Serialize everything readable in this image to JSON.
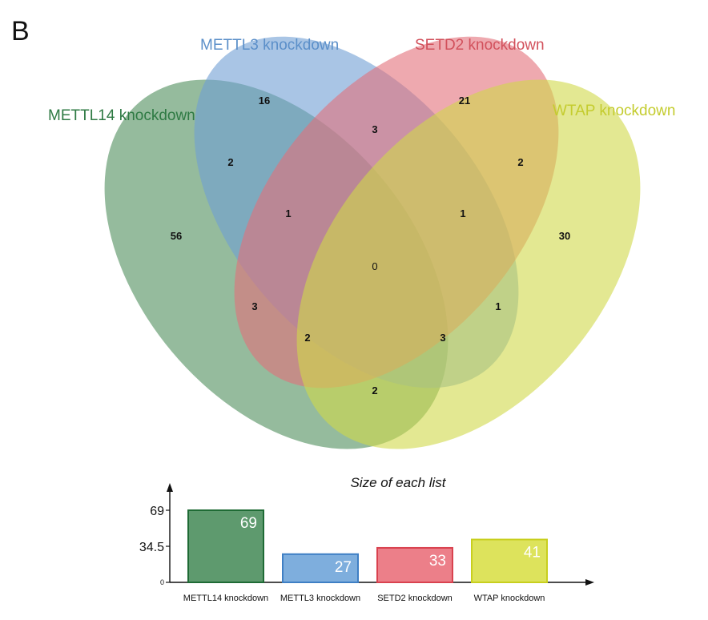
{
  "panel_label": "B",
  "chart_data": [
    {
      "type": "venn",
      "sets": [
        {
          "name": "METTL14 knockdown",
          "color": "#4e8d5c"
        },
        {
          "name": "METTL3 knockdown",
          "color": "#6f9fd4"
        },
        {
          "name": "SETD2 knockdown",
          "color": "#e3707a"
        },
        {
          "name": "WTAP knockdown",
          "color": "#d0d84a"
        }
      ],
      "label_colors": [
        "#2e7a43",
        "#5b8fc9",
        "#d2515c",
        "#c4cc2e"
      ],
      "regions": [
        {
          "sets": [
            "METTL14 knockdown"
          ],
          "count": "56"
        },
        {
          "sets": [
            "METTL3 knockdown"
          ],
          "count": "16"
        },
        {
          "sets": [
            "SETD2 knockdown"
          ],
          "count": "21"
        },
        {
          "sets": [
            "WTAP knockdown"
          ],
          "count": "30"
        },
        {
          "sets": [
            "METTL14 knockdown",
            "METTL3 knockdown"
          ],
          "count": "2"
        },
        {
          "sets": [
            "METTL3 knockdown",
            "SETD2 knockdown"
          ],
          "count": "3"
        },
        {
          "sets": [
            "SETD2 knockdown",
            "WTAP knockdown"
          ],
          "count": "2"
        },
        {
          "sets": [
            "METTL14 knockdown",
            "METTL3 knockdown",
            "SETD2 knockdown"
          ],
          "count": "1"
        },
        {
          "sets": [
            "METTL3 knockdown",
            "SETD2 knockdown",
            "WTAP knockdown"
          ],
          "count": "1"
        },
        {
          "sets": [
            "METTL14 knockdown",
            "METTL3 knockdown",
            "SETD2 knockdown",
            "WTAP knockdown"
          ],
          "count": "0"
        },
        {
          "sets": [
            "METTL14 knockdown",
            "SETD2 knockdown"
          ],
          "count": "3"
        },
        {
          "sets": [
            "METTL3 knockdown",
            "WTAP knockdown"
          ],
          "count": "1"
        },
        {
          "sets": [
            "METTL14 knockdown",
            "SETD2 knockdown",
            "WTAP knockdown"
          ],
          "count": "2"
        },
        {
          "sets": [
            "METTL14 knockdown",
            "METTL3 knockdown",
            "WTAP knockdown"
          ],
          "count": "3"
        },
        {
          "sets": [
            "METTL14 knockdown",
            "WTAP knockdown"
          ],
          "count": "2"
        }
      ]
    },
    {
      "type": "bar",
      "title": "Size of each list",
      "categories": [
        "METTL14 knockdown",
        "METTL3 knockdown",
        "SETD2 knockdown",
        "WTAP knockdown"
      ],
      "values": [
        69,
        27,
        33,
        41
      ],
      "value_labels": [
        "69",
        "27",
        "33",
        "41"
      ],
      "yticks": [
        "69",
        "34.5",
        "0"
      ],
      "ylim": [
        0,
        69
      ],
      "fill_colors": [
        "#5e9a6e",
        "#7eaedd",
        "#ec7f89",
        "#dde35c"
      ],
      "stroke_colors": [
        "#1f6b35",
        "#3f7fc4",
        "#d9424f",
        "#c8cf1e"
      ]
    }
  ]
}
